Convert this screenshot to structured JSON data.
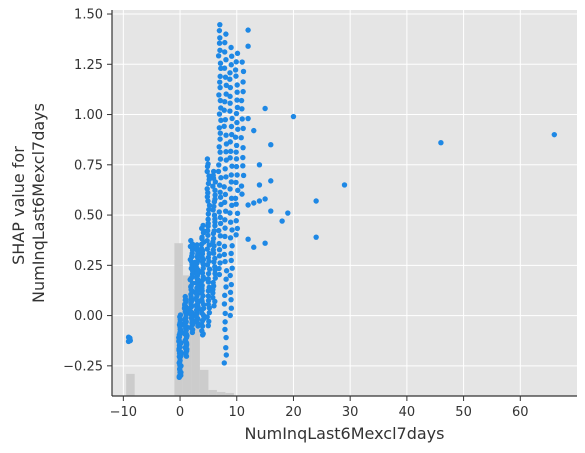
{
  "chart_data": {
    "type": "scatter",
    "xlabel": "NumInqLast6Mexcl7days",
    "ylabel_lines": [
      "SHAP value for",
      "NumInqLast6Mexcl7days"
    ],
    "xlim": [
      -12,
      70
    ],
    "ylim": [
      -0.4,
      1.52
    ],
    "x_ticks": [
      -10,
      0,
      10,
      20,
      30,
      40,
      50,
      60
    ],
    "x_tick_labels": [
      "−10",
      "0",
      "10",
      "20",
      "30",
      "40",
      "50",
      "60"
    ],
    "y_ticks": [
      -0.25,
      0.0,
      0.25,
      0.5,
      0.75,
      1.0,
      1.25,
      1.5
    ],
    "y_tick_labels": [
      "−0.25",
      "0.00",
      "0.25",
      "0.50",
      "0.75",
      "1.00",
      "1.25",
      "1.50"
    ],
    "grid": true,
    "point_color": "#1e88e5",
    "background_color": "#e5e5e5",
    "histogram_color": "#cccccc",
    "histogram": [
      {
        "x0": -9.5,
        "x1": -8.0,
        "top": -0.29
      },
      {
        "x0": -1.0,
        "x1": 0.5,
        "top": 0.36
      },
      {
        "x0": 0.5,
        "x1": 2.0,
        "top": 0.2
      },
      {
        "x0": 2.0,
        "x1": 3.5,
        "top": 0.03
      },
      {
        "x0": 3.5,
        "x1": 5.0,
        "top": -0.27
      },
      {
        "x0": 5.0,
        "x1": 6.5,
        "top": -0.37
      },
      {
        "x0": 6.5,
        "x1": 8.0,
        "top": -0.38
      },
      {
        "x0": 8.0,
        "x1": 9.5,
        "top": -0.385
      }
    ],
    "clusters": [
      {
        "x": -9,
        "y_min": -0.13,
        "y_max": -0.11,
        "count": 6
      },
      {
        "x": 0,
        "y_min": -0.31,
        "y_max": 0.0,
        "count": 40
      },
      {
        "x": 1,
        "y_min": -0.2,
        "y_max": 0.09,
        "count": 40
      },
      {
        "x": 2,
        "y_min": -0.08,
        "y_max": 0.37,
        "count": 40
      },
      {
        "x": 3,
        "y_min": -0.05,
        "y_max": 0.35,
        "count": 40
      },
      {
        "x": 4,
        "y_min": -0.1,
        "y_max": 0.45,
        "count": 40
      },
      {
        "x": 5,
        "y_min": -0.05,
        "y_max": 0.78,
        "count": 40
      },
      {
        "x": 6,
        "y_min": 0.05,
        "y_max": 0.72,
        "count": 35
      },
      {
        "x": 7,
        "y_min": 0.2,
        "y_max": 1.45,
        "count": 40
      },
      {
        "x": 8,
        "y_min": -0.24,
        "y_max": 1.4,
        "count": 40
      },
      {
        "x": 9,
        "y_min": 0.0,
        "y_max": 1.33,
        "count": 35
      },
      {
        "x": 10,
        "y_min": 0.4,
        "y_max": 1.3,
        "count": 25
      },
      {
        "x": 11,
        "y_min": 0.6,
        "y_max": 1.26,
        "count": 15
      }
    ],
    "points": [
      {
        "x": 12,
        "y": 1.42
      },
      {
        "x": 12,
        "y": 1.34
      },
      {
        "x": 12,
        "y": 0.98
      },
      {
        "x": 12,
        "y": 0.55
      },
      {
        "x": 12,
        "y": 0.38
      },
      {
        "x": 13,
        "y": 0.92
      },
      {
        "x": 13,
        "y": 0.56
      },
      {
        "x": 13,
        "y": 0.34
      },
      {
        "x": 14,
        "y": 0.75
      },
      {
        "x": 14,
        "y": 0.65
      },
      {
        "x": 14,
        "y": 0.57
      },
      {
        "x": 15,
        "y": 1.03
      },
      {
        "x": 15,
        "y": 0.58
      },
      {
        "x": 15,
        "y": 0.36
      },
      {
        "x": 16,
        "y": 0.85
      },
      {
        "x": 16,
        "y": 0.67
      },
      {
        "x": 16,
        "y": 0.52
      },
      {
        "x": 18,
        "y": 0.47
      },
      {
        "x": 19,
        "y": 0.51
      },
      {
        "x": 20,
        "y": 0.99
      },
      {
        "x": 24,
        "y": 0.57
      },
      {
        "x": 24,
        "y": 0.39
      },
      {
        "x": 29,
        "y": 0.65
      },
      {
        "x": 46,
        "y": 0.86
      },
      {
        "x": 66,
        "y": 0.9
      }
    ]
  }
}
